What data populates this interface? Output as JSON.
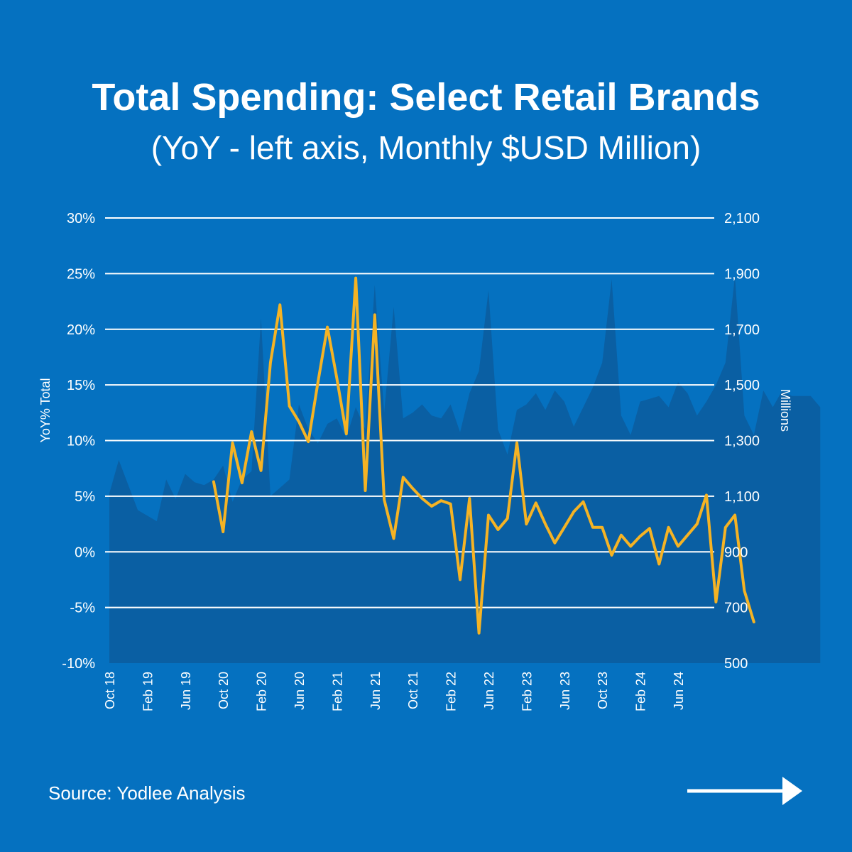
{
  "chart_data": {
    "type": "area+line",
    "title": "Total Spending: Select Retail Brands",
    "subtitle": "(YoY - left axis, Monthly $USD Million)",
    "ylabel_left": "YoY% Total",
    "ylabel_right": "Millions",
    "ylim_left": [
      -10,
      30
    ],
    "ylim_right": [
      500,
      2100
    ],
    "left_ticks": [
      "30%",
      "25%",
      "20%",
      "15%",
      "10%",
      "5%",
      "0%",
      "-5%",
      "-10%"
    ],
    "right_ticks": [
      "2,100",
      "1,900",
      "1,700",
      "1,500",
      "1,300",
      "1,100",
      "900",
      "700",
      "500"
    ],
    "x_ticks": [
      {
        "index": 0,
        "label": "Oct 18"
      },
      {
        "index": 4,
        "label": "Feb 19"
      },
      {
        "index": 8,
        "label": "Jun 19"
      },
      {
        "index": 12,
        "label": "Oct 20"
      },
      {
        "index": 16,
        "label": "Feb 20"
      },
      {
        "index": 20,
        "label": "Jun 20"
      },
      {
        "index": 24,
        "label": "Feb 21"
      },
      {
        "index": 28,
        "label": "Jun 21"
      },
      {
        "index": 32,
        "label": "Oct 21"
      },
      {
        "index": 36,
        "label": "Feb 22"
      },
      {
        "index": 40,
        "label": "Jun 22"
      },
      {
        "index": 44,
        "label": "Feb 23"
      },
      {
        "index": 48,
        "label": "Jun 23"
      },
      {
        "index": 52,
        "label": "Oct 23"
      },
      {
        "index": 56,
        "label": "Feb 24"
      },
      {
        "index": 60,
        "label": "Jun 24"
      }
    ],
    "series": [
      {
        "name": "Monthly spending ($USD Million)",
        "axis": "right",
        "type": "area",
        "color": "#0a5fa3",
        "start_index": 0,
        "values": [
          1110,
          1230,
          1140,
          1050,
          1030,
          1010,
          1160,
          1090,
          1180,
          1150,
          1140,
          1160,
          1210,
          1080,
          1160,
          1190,
          1740,
          1100,
          1130,
          1160,
          1430,
          1340,
          1290,
          1360,
          1380,
          1310,
          1420,
          1340,
          1860,
          1400,
          1780,
          1380,
          1400,
          1430,
          1390,
          1380,
          1430,
          1330,
          1470,
          1550,
          1840,
          1340,
          1250,
          1410,
          1430,
          1470,
          1410,
          1480,
          1440,
          1350,
          1420,
          1490,
          1580,
          1880,
          1390,
          1320,
          1440,
          1450,
          1460,
          1420,
          1510,
          1470,
          1390,
          1440,
          1500,
          1580,
          1890,
          1390,
          1320,
          1480,
          1420,
          1480,
          1460,
          1460,
          1460,
          1420
        ]
      },
      {
        "name": "YoY% Total",
        "axis": "left",
        "type": "line",
        "color": "#f5b324",
        "start_index": 11,
        "values": [
          6.3,
          1.8,
          9.8,
          6.2,
          10.8,
          7.3,
          17.0,
          22.2,
          13.1,
          11.7,
          9.9,
          15.2,
          20.2,
          15.6,
          10.6,
          24.6,
          5.5,
          21.3,
          4.7,
          1.2,
          6.7,
          5.7,
          4.8,
          4.1,
          4.6,
          4.3,
          -2.5,
          4.8,
          -7.3,
          3.3,
          2.0,
          3.0,
          9.8,
          2.5,
          4.4,
          2.5,
          0.8,
          2.2,
          3.6,
          4.5,
          2.2,
          2.2,
          -0.3,
          1.5,
          0.5,
          1.4,
          2.1,
          -1.1,
          2.2,
          0.5,
          1.5,
          2.5,
          5.1,
          -4.5,
          2.2,
          3.3,
          -3.5,
          -6.3
        ]
      }
    ]
  },
  "footer": {
    "source": "Source: Yodlee Analysis",
    "next_icon": "arrow-right-icon"
  }
}
